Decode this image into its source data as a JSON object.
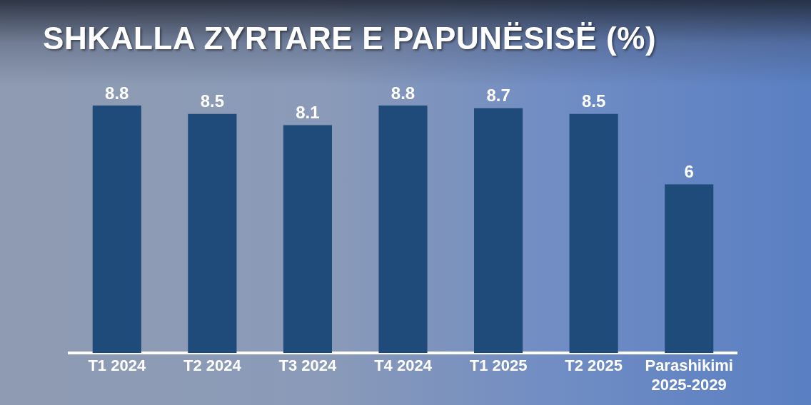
{
  "chart_data": {
    "type": "bar",
    "title": "SHKALLA ZYRTARE E PAPUNËSISË (%)",
    "categories": [
      "T1 2024",
      "T2 2024",
      "T3 2024",
      "T4 2024",
      "T1 2025",
      "T2 2025",
      "Parashikimi 2025-2029"
    ],
    "values": [
      8.8,
      8.5,
      8.1,
      8.8,
      8.7,
      8.5,
      6
    ],
    "color": "#1f4b7a",
    "data_labels": true
  }
}
